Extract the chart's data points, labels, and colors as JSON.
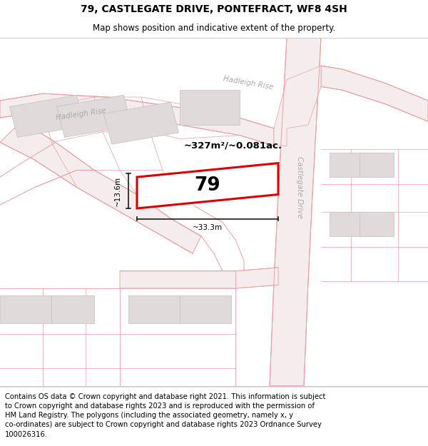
{
  "title": "79, CASTLEGATE DRIVE, PONTEFRACT, WF8 4SH",
  "subtitle": "Map shows position and indicative extent of the property.",
  "footer": "Contains OS data © Crown copyright and database right 2021. This information is subject\nto Crown copyright and database rights 2023 and is reproduced with the permission of\nHM Land Registry. The polygons (including the associated geometry, namely x, y\nco-ordinates) are subject to Crown copyright and database rights 2023 Ordnance Survey\n100026316.",
  "area_label": "~327m²/~0.081ac.",
  "width_label": "~33.3m",
  "height_label": "~13.6m",
  "plot_number": "79",
  "map_bg": "#ffffff",
  "road_line_color": "#e8a0a0",
  "road_fill_color": "#f5eded",
  "building_color": "#e0dada",
  "building_edge": "#c8bfbf",
  "plot_outline_color": "#dd0000",
  "dim_line_color": "#1a1a1a",
  "road_label_color": "#aaaaaa",
  "title_fontsize": 10,
  "subtitle_fontsize": 8.5,
  "footer_fontsize": 7.2
}
